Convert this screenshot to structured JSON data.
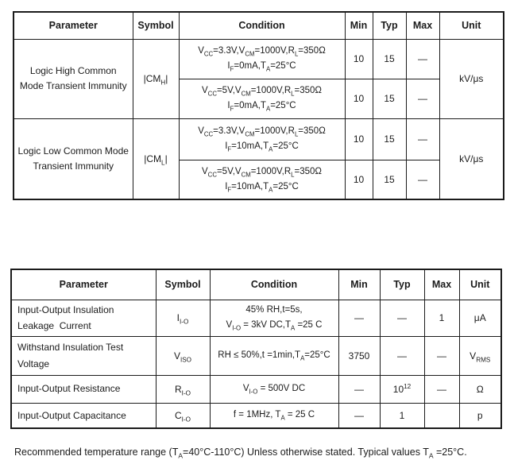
{
  "page": {
    "background": "#ffffff",
    "text_color": "#1b1b1b",
    "border_color": "#1b1b1b"
  },
  "table1": {
    "headers": [
      "Parameter",
      "Symbol",
      "Condition",
      "Min",
      "Typ",
      "Max",
      "Unit"
    ],
    "groups": [
      {
        "parameter": "Logic High Common\nMode Transient Immunity",
        "symbol": "|CM~H~|",
        "unit": "kV/μs",
        "rows": [
          {
            "condition": "V~CC~=3.3V,V~CM~=1000V,R~L~=350Ω\nI~F~=0mA,T~A~=25°C",
            "min": "10",
            "typ": "15",
            "max": "—"
          },
          {
            "condition": "V~CC~=5V,V~CM~=1000V,R~L~=350Ω\nI~F~=0mA,T~A~=25°C",
            "min": "10",
            "typ": "15",
            "max": "—"
          }
        ]
      },
      {
        "parameter": "Logic Low Common Mode\nTransient Immunity",
        "symbol": "|CM~L~|",
        "unit": "kV/μs",
        "rows": [
          {
            "condition": "V~CC~=3.3V,V~CM~=1000V,R~L~=350Ω\nI~F~=10mA,T~A~=25°C",
            "min": "10",
            "typ": "15",
            "max": "—"
          },
          {
            "condition": "V~CC~=5V,V~CM~=1000V,R~L~=350Ω\nI~F~=10mA,T~A~=25°C",
            "min": "10",
            "typ": "15",
            "max": "—"
          }
        ]
      }
    ]
  },
  "table2": {
    "headers": [
      "Parameter",
      "Symbol",
      "Condition",
      "Min",
      "Typ",
      "Max",
      "Unit"
    ],
    "rows": [
      {
        "parameter": "Input-Output Insulation\nLeakage  Current",
        "symbol": "I~I-O~",
        "condition": "45% RH,t=5s,\nV~I-O~ = 3kV DC,T~A~ =25 C",
        "min": "—",
        "typ": "—",
        "max": "1",
        "unit": "μA"
      },
      {
        "parameter": "Withstand Insulation Test\nVoltage",
        "symbol": "V~ISO~",
        "condition": "RH ≤ 50%,t =1min,T~A~=25°C",
        "min": "3750",
        "typ": "—",
        "max": "—",
        "unit": "V~RMS~"
      },
      {
        "parameter": "Input-Output Resistance",
        "symbol": "R~I-O~",
        "condition": "V~I-O~ = 500V DC",
        "min": "—",
        "typ": "10^12^",
        "max": "—",
        "unit": "Ω"
      },
      {
        "parameter": "Input-Output Capacitance",
        "symbol": "C~I-O~",
        "condition": "f = 1MHz, T~A~ = 25 C",
        "min": "—",
        "typ": "1",
        "max": "",
        "unit": "p"
      }
    ]
  },
  "footer": {
    "note": "Recommended temperature range (T~A~=40°C-110°C) Unless otherwise stated. Typical values T~A~ =25°C."
  }
}
